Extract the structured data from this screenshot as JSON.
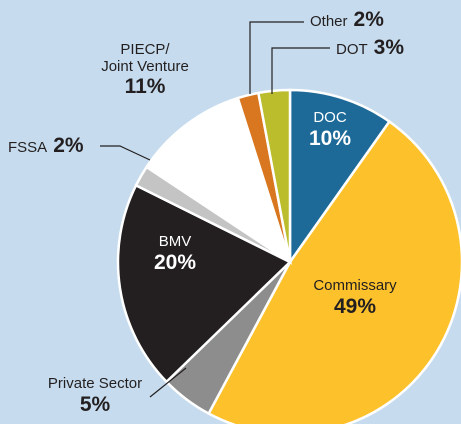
{
  "chart_data": {
    "type": "pie",
    "categories": [
      "DOC",
      "Commissary",
      "Private Sector",
      "BMV",
      "FSSA",
      "PIECP/\nJoint Venture",
      "Other",
      "DOT"
    ],
    "values": [
      10,
      49,
      5,
      20,
      2,
      11,
      2,
      3
    ],
    "value_labels": [
      "10%",
      "49%",
      "5%",
      "20%",
      "2%",
      "11%",
      "2%",
      "3%"
    ],
    "colors": [
      "#1d6a98",
      "#fdc22b",
      "#8d8d8d",
      "#231f20",
      "#c4c4c4",
      "#ffffff",
      "#d8771f",
      "#bcbd2c"
    ]
  }
}
